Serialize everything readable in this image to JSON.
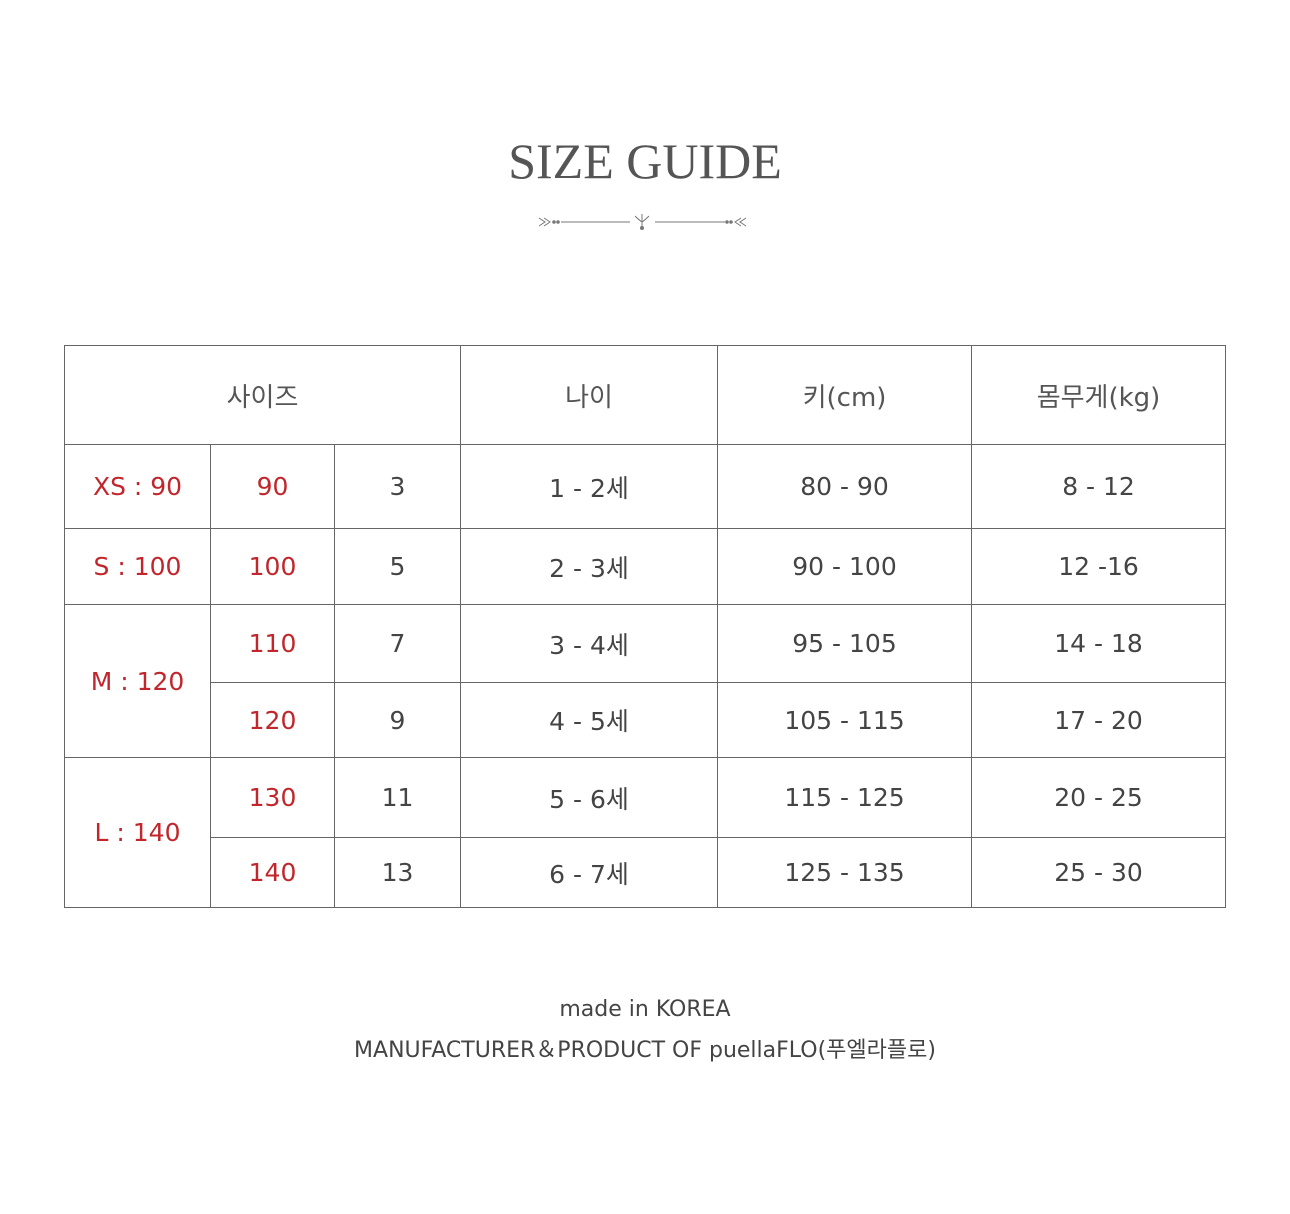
{
  "title": "SIZE GUIDE",
  "colors": {
    "accent": "#c0262b",
    "text": "#444444",
    "border": "#666666"
  },
  "table": {
    "headers": [
      "사이즈",
      "나이",
      "키(cm)",
      "몸무게(kg)"
    ],
    "groups": [
      "XS : 90",
      "S : 100",
      "M : 120",
      "L : 140"
    ],
    "rows": [
      {
        "size": "90",
        "num": "3",
        "age": "1 - 2세",
        "height": "80 - 90",
        "weight": "8 - 12"
      },
      {
        "size": "100",
        "num": "5",
        "age": "2 - 3세",
        "height": "90 - 100",
        "weight": "12 -16"
      },
      {
        "size": "110",
        "num": "7",
        "age": "3 - 4세",
        "height": "95 - 105",
        "weight": "14 - 18"
      },
      {
        "size": "120",
        "num": "9",
        "age": "4 - 5세",
        "height": "105 - 115",
        "weight": "17 - 20"
      },
      {
        "size": "130",
        "num": "11",
        "age": "5 - 6세",
        "height": "115 - 125",
        "weight": "20 - 25"
      },
      {
        "size": "140",
        "num": "13",
        "age": "6 - 7세",
        "height": "125 - 135",
        "weight": "25 - 30"
      }
    ]
  },
  "footer": {
    "line1": "made in KOREA",
    "line2": "MANUFACTURER＆PRODUCT OF puellaFLO(푸엘라플로)"
  }
}
